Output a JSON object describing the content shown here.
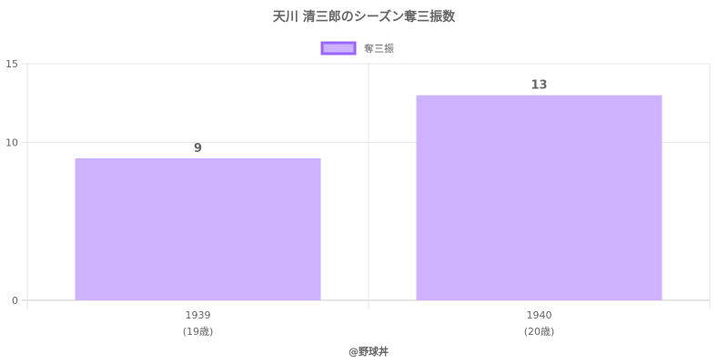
{
  "chart_data": {
    "type": "bar",
    "title": "天川 清三郎のシーズン奪三振数",
    "xlabel": "@野球丼",
    "ylabel": "",
    "categories": [
      "1939",
      "1940"
    ],
    "category_sublabels": [
      "(19歳)",
      "(20歳)"
    ],
    "series": [
      {
        "name": "奪三振",
        "values": [
          9,
          13
        ]
      }
    ],
    "ylim": [
      0,
      15
    ],
    "yticks": [
      0,
      10,
      15
    ],
    "grid": true,
    "legend": "top-center",
    "colors": {
      "bar_fill": "#cdb3ff",
      "bar_border": "#9966ff",
      "grid": "#e5e5e5",
      "axis": "#cccccc",
      "text": "#666666"
    }
  }
}
